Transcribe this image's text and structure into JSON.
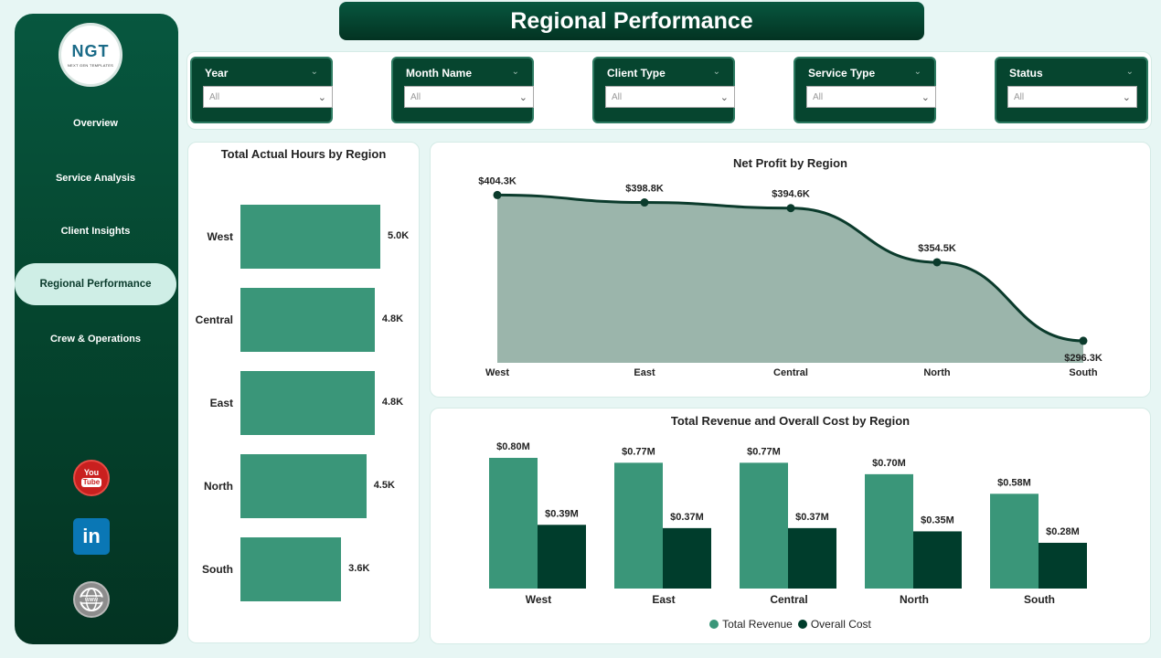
{
  "header": {
    "title": "Regional Performance"
  },
  "logo": {
    "mark": "NGT",
    "sub": "NEXT GEN TEMPLATES"
  },
  "sidebar": {
    "items": [
      {
        "label": "Overview",
        "active": false
      },
      {
        "label": "Service Analysis",
        "active": false
      },
      {
        "label": "Client Insights",
        "active": false
      },
      {
        "label": "Regional Performance",
        "active": true
      },
      {
        "label": "Crew & Operations",
        "active": false
      }
    ],
    "social": {
      "youtube_top": "You",
      "youtube_bottom": "Tube",
      "linkedin": "in"
    }
  },
  "filters": [
    {
      "title": "Year",
      "value": "All"
    },
    {
      "title": "Month Name",
      "value": "All"
    },
    {
      "title": "Client Type",
      "value": "All"
    },
    {
      "title": "Service Type",
      "value": "All"
    },
    {
      "title": "Status",
      "value": "All"
    }
  ],
  "colors": {
    "primary": "#3a9679",
    "dark": "#003d2c",
    "area": "#9bb5ab",
    "line": "#0b3b2c"
  },
  "charts": {
    "hours": {
      "title": "Total Actual Hours by Region",
      "chart_data": {
        "type": "bar",
        "orientation": "horizontal",
        "categories": [
          "West",
          "Central",
          "East",
          "North",
          "South"
        ],
        "values": [
          5.0,
          4.8,
          4.8,
          4.5,
          3.6
        ],
        "labels": [
          "5.0K",
          "4.8K",
          "4.8K",
          "4.5K",
          "3.6K"
        ],
        "unit": "K hours"
      }
    },
    "profit": {
      "title": "Net Profit by Region",
      "chart_data": {
        "type": "area",
        "categories": [
          "West",
          "East",
          "Central",
          "North",
          "South"
        ],
        "values": [
          404.3,
          398.8,
          394.6,
          354.5,
          296.3
        ],
        "labels": [
          "$404.3K",
          "$398.8K",
          "$394.6K",
          "$354.5K",
          "$296.3K"
        ],
        "unit": "$K"
      }
    },
    "revenue": {
      "title": "Total Revenue and Overall Cost by Region",
      "chart_data": {
        "type": "bar",
        "categories": [
          "West",
          "East",
          "Central",
          "North",
          "South"
        ],
        "series": [
          {
            "name": "Total Revenue",
            "values": [
              0.8,
              0.77,
              0.77,
              0.7,
              0.58
            ],
            "labels": [
              "$0.80M",
              "$0.77M",
              "$0.77M",
              "$0.70M",
              "$0.58M"
            ]
          },
          {
            "name": "Overall Cost",
            "values": [
              0.39,
              0.37,
              0.37,
              0.35,
              0.28
            ],
            "labels": [
              "$0.39M",
              "$0.37M",
              "$0.37M",
              "$0.35M",
              "$0.28M"
            ]
          }
        ],
        "unit": "$M"
      }
    }
  }
}
